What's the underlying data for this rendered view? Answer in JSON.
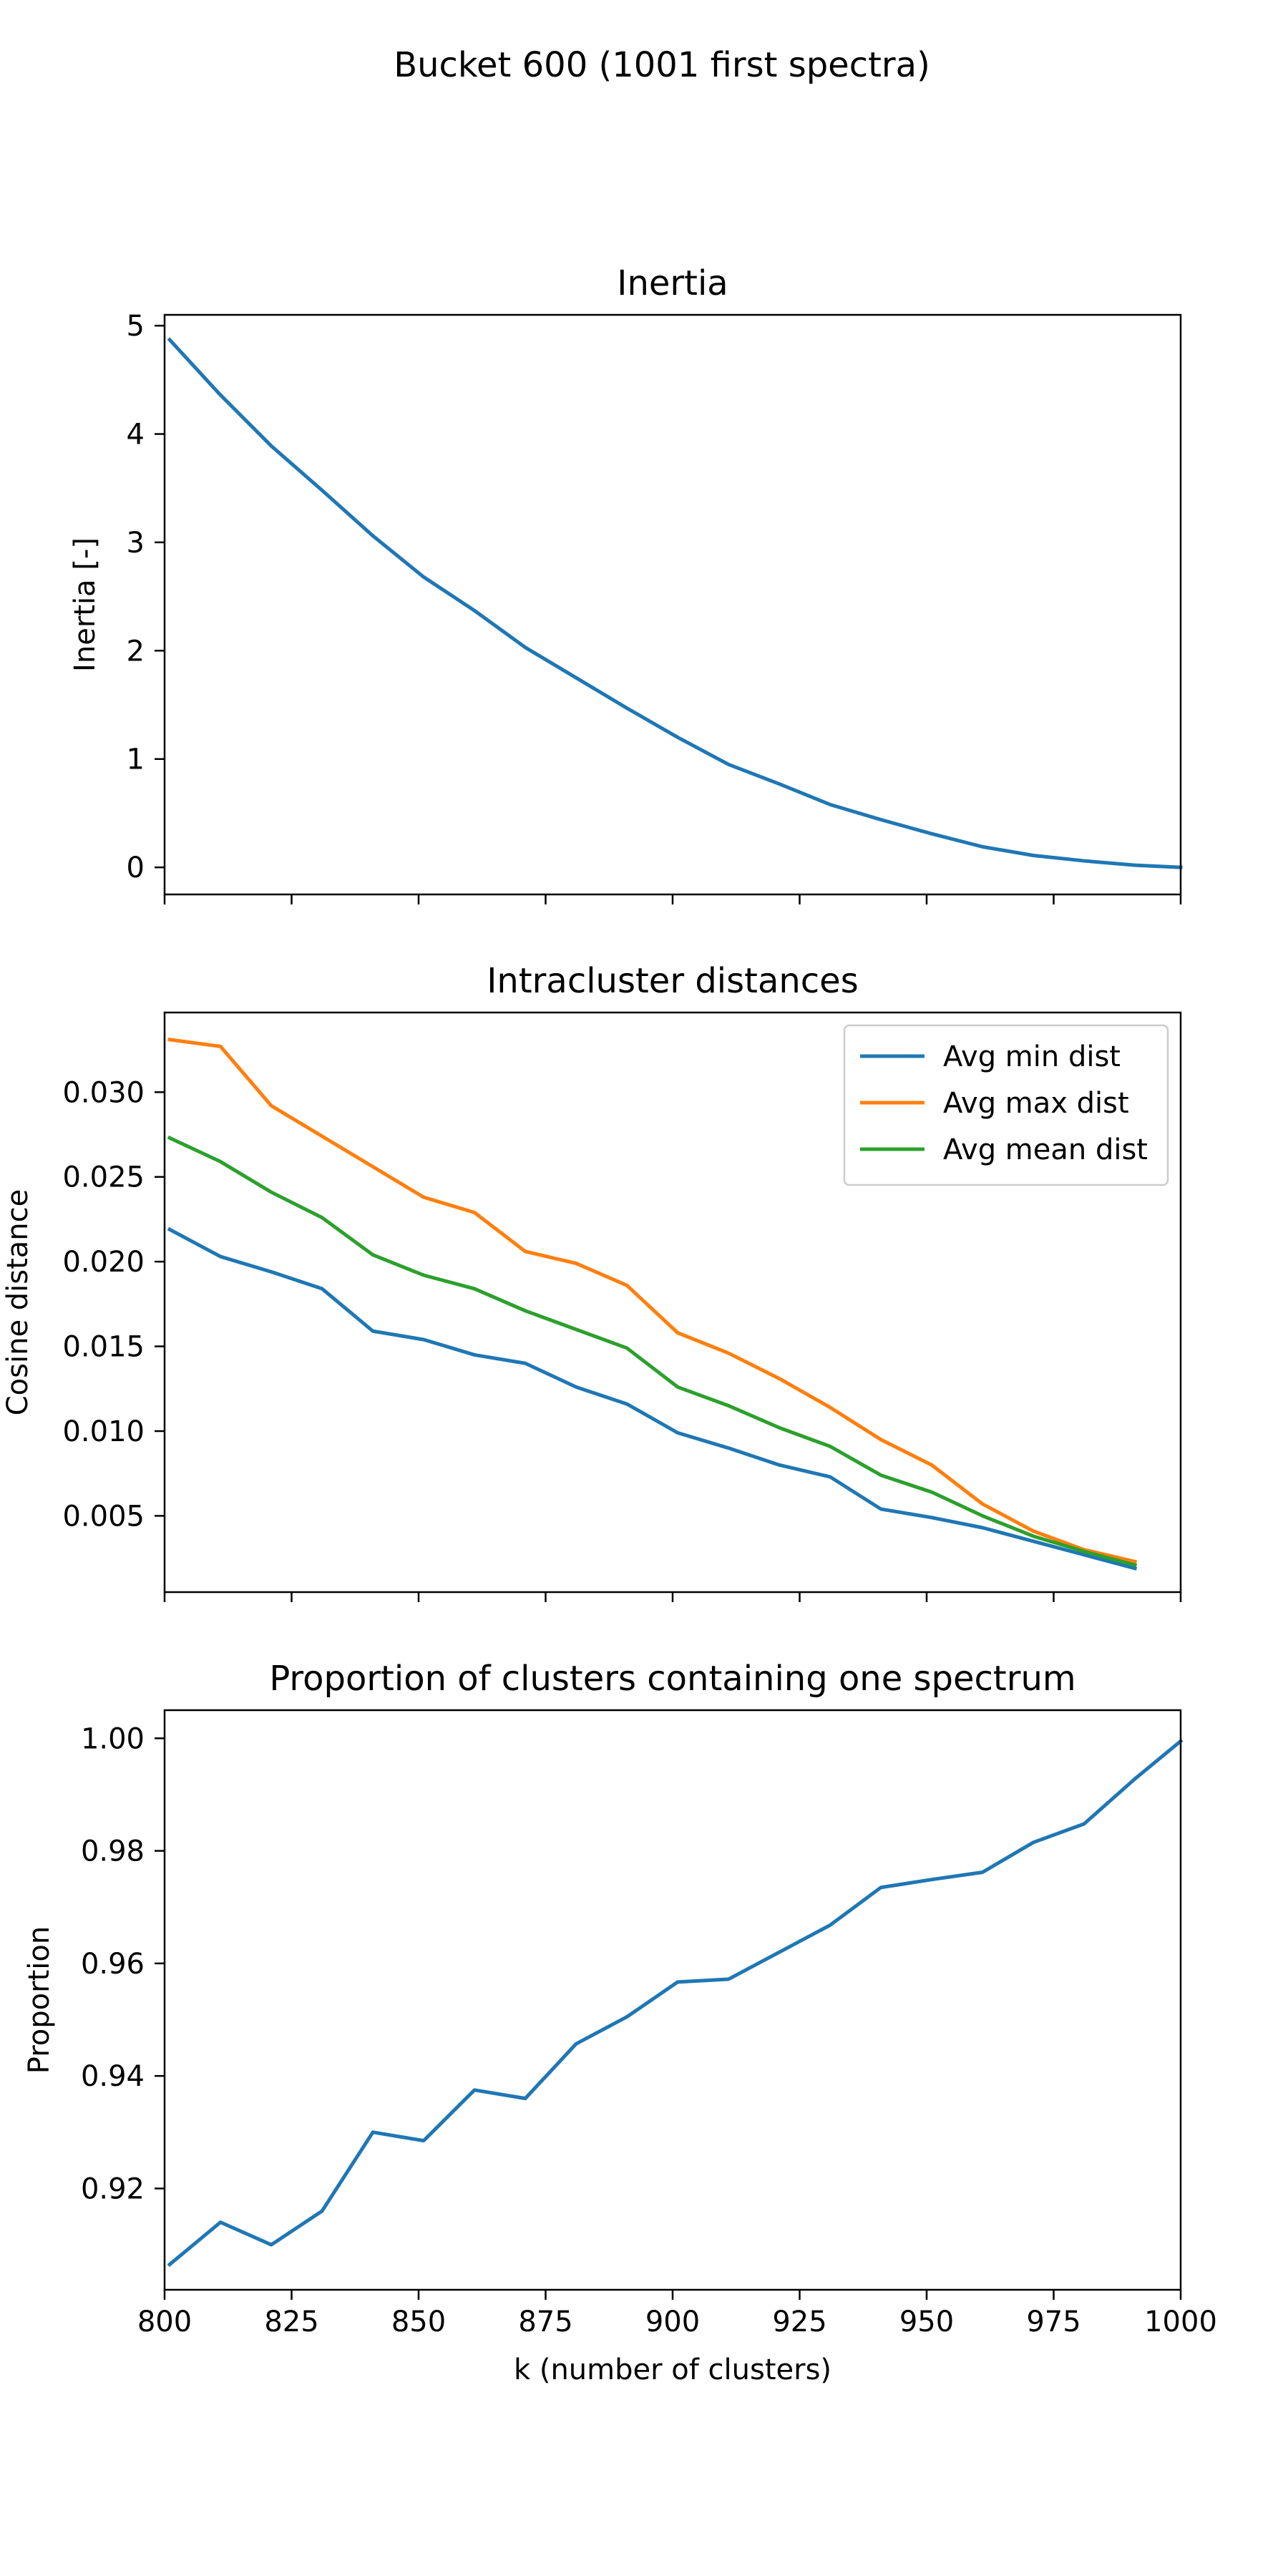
{
  "figure": {
    "suptitle": "Bucket 600 (1001 first spectra)"
  },
  "chart_data": [
    {
      "type": "line",
      "title": "Inertia",
      "xlabel": "",
      "ylabel": "Inertia [-]",
      "xlim": [
        800,
        1000
      ],
      "ylim": [
        -0.25,
        5.1
      ],
      "xticks": [
        800,
        825,
        850,
        875,
        900,
        925,
        950,
        975,
        1000
      ],
      "show_xtick_labels": false,
      "yticks": [
        0,
        1,
        2,
        3,
        4,
        5
      ],
      "ytick_labels": [
        "0",
        "1",
        "2",
        "3",
        "4",
        "5"
      ],
      "grid": false,
      "legend": null,
      "x": [
        801,
        811,
        821,
        831,
        841,
        851,
        861,
        871,
        881,
        891,
        901,
        911,
        921,
        931,
        941,
        951,
        961,
        971,
        981,
        991,
        1000
      ],
      "series": [
        {
          "color": "#1f77b4",
          "values": [
            4.87,
            4.36,
            3.89,
            3.48,
            3.06,
            2.68,
            2.37,
            2.03,
            1.75,
            1.47,
            1.2,
            0.95,
            0.77,
            0.58,
            0.44,
            0.31,
            0.19,
            0.11,
            0.06,
            0.02,
            0.0
          ]
        }
      ]
    },
    {
      "type": "line",
      "title": "Intracluster distances",
      "xlabel": "",
      "ylabel": "Cosine distance",
      "xlim": [
        800,
        1000
      ],
      "ylim": [
        0.0005,
        0.0347
      ],
      "xticks": [
        800,
        825,
        850,
        875,
        900,
        925,
        950,
        975,
        1000
      ],
      "show_xtick_labels": false,
      "yticks": [
        0.005,
        0.01,
        0.015,
        0.02,
        0.025,
        0.03
      ],
      "ytick_labels": [
        "0.005",
        "0.010",
        "0.015",
        "0.020",
        "0.025",
        "0.030"
      ],
      "grid": false,
      "legend": "top-right",
      "x": [
        801,
        811,
        821,
        831,
        841,
        851,
        861,
        871,
        881,
        891,
        901,
        911,
        921,
        931,
        941,
        951,
        961,
        971,
        981,
        991
      ],
      "series": [
        {
          "name": "Avg min dist",
          "color": "#1f77b4",
          "values": [
            0.0219,
            0.0203,
            0.0194,
            0.0184,
            0.0159,
            0.0154,
            0.0145,
            0.014,
            0.0126,
            0.0116,
            0.0099,
            0.009,
            0.008,
            0.0073,
            0.0054,
            0.0049,
            0.0043,
            0.0035,
            0.0027,
            0.0019
          ]
        },
        {
          "name": "Avg max dist",
          "color": "#ff7f0e",
          "values": [
            0.0331,
            0.0327,
            0.0292,
            0.0274,
            0.0256,
            0.0238,
            0.0229,
            0.0206,
            0.0199,
            0.0186,
            0.0158,
            0.0146,
            0.0131,
            0.0114,
            0.0095,
            0.008,
            0.0057,
            0.0041,
            0.003,
            0.0023
          ]
        },
        {
          "name": "Avg mean dist",
          "color": "#2ca02c",
          "values": [
            0.0273,
            0.0259,
            0.0241,
            0.0226,
            0.0204,
            0.0192,
            0.0184,
            0.0171,
            0.016,
            0.0149,
            0.0126,
            0.0115,
            0.0102,
            0.0091,
            0.0074,
            0.0064,
            0.005,
            0.0038,
            0.0029,
            0.0021
          ]
        }
      ]
    },
    {
      "type": "line",
      "title": "Proportion of clusters containing one spectrum",
      "xlabel": "k (number of clusters)",
      "ylabel": "Proportion",
      "xlim": [
        800,
        1000
      ],
      "ylim": [
        0.902,
        1.005
      ],
      "xticks": [
        800,
        825,
        850,
        875,
        900,
        925,
        950,
        975,
        1000
      ],
      "xtick_labels": [
        "800",
        "825",
        "850",
        "875",
        "900",
        "925",
        "950",
        "975",
        "1000"
      ],
      "show_xtick_labels": true,
      "yticks": [
        0.92,
        0.94,
        0.96,
        0.98,
        1.0
      ],
      "ytick_labels": [
        "0.92",
        "0.94",
        "0.96",
        "0.98",
        "1.00"
      ],
      "grid": false,
      "legend": null,
      "x": [
        801,
        811,
        821,
        831,
        841,
        851,
        861,
        871,
        881,
        891,
        901,
        911,
        921,
        931,
        941,
        951,
        961,
        971,
        981,
        991,
        1000
      ],
      "series": [
        {
          "color": "#1f77b4",
          "values": [
            0.9065,
            0.914,
            0.91,
            0.916,
            0.93,
            0.9285,
            0.9375,
            0.936,
            0.9457,
            0.9505,
            0.9567,
            0.9572,
            0.962,
            0.9668,
            0.9735,
            0.9749,
            0.9762,
            0.9815,
            0.9848,
            0.9928,
            0.9995
          ]
        }
      ]
    }
  ]
}
